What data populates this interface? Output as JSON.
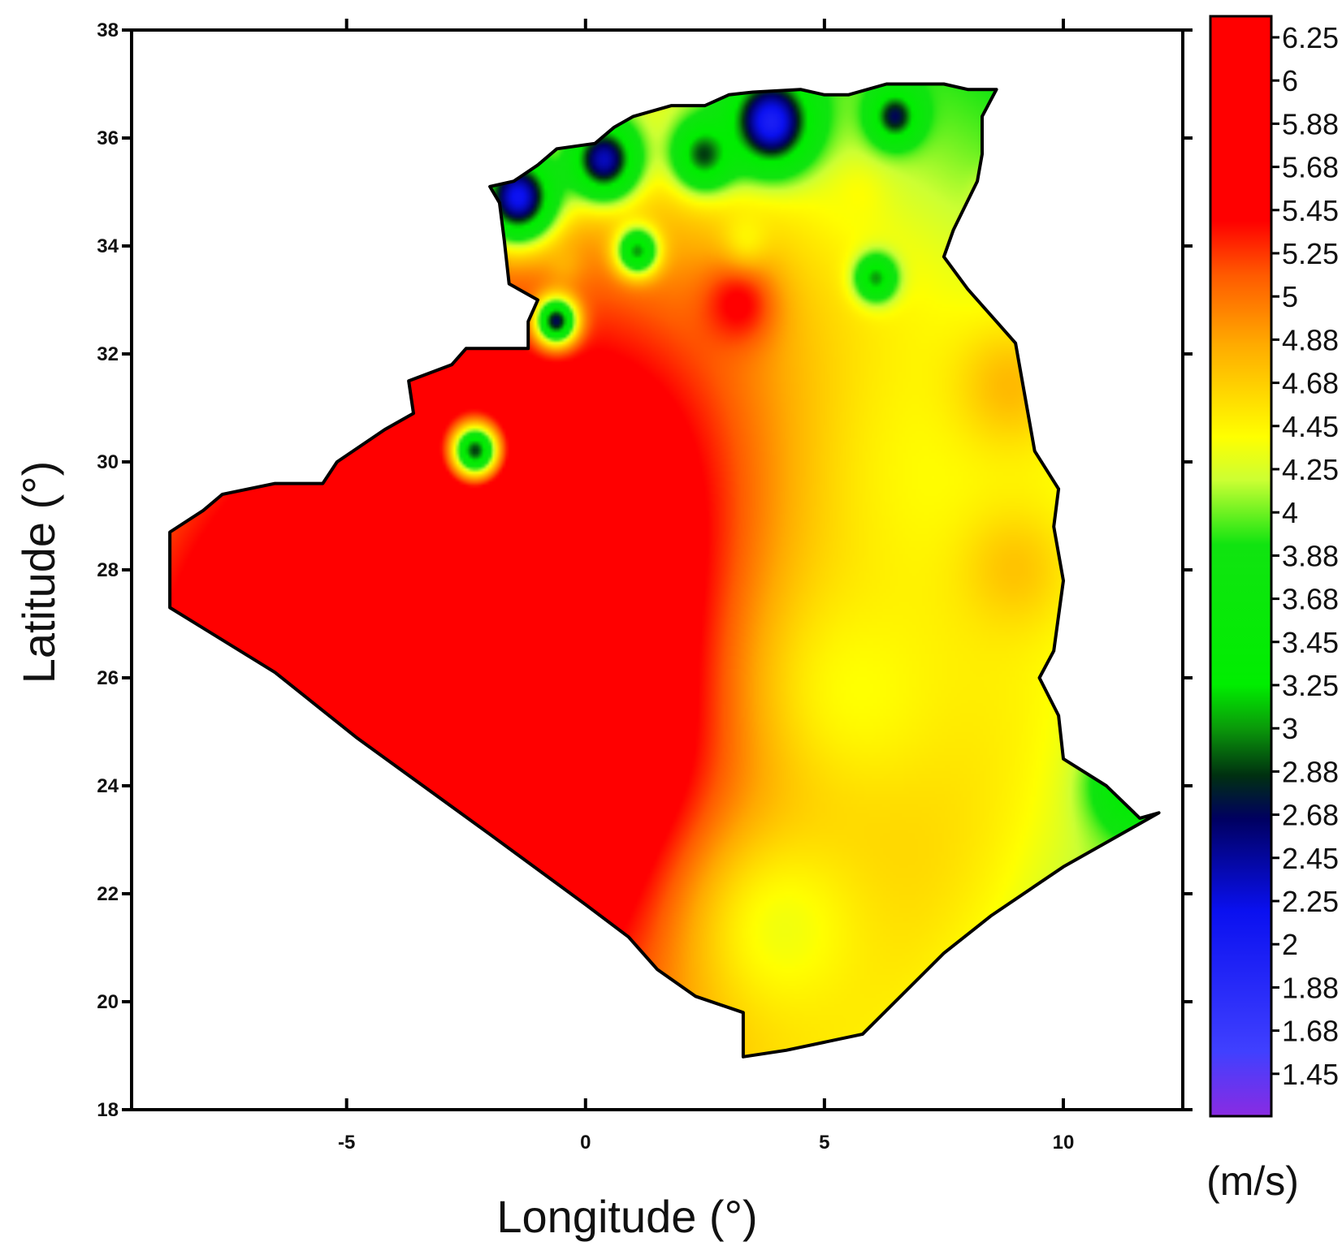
{
  "chart_data": {
    "type": "heatmap",
    "xlabel": "Longitude (°)",
    "ylabel": "Latitude (°)",
    "xlim": [
      -9.5,
      12.5
    ],
    "ylim": [
      18,
      38
    ],
    "x_ticks": [
      "-5",
      "0",
      "5",
      "10"
    ],
    "x_tick_values": [
      -5,
      0,
      5,
      10
    ],
    "y_ticks": [
      "18",
      "20",
      "22",
      "24",
      "26",
      "28",
      "30",
      "32",
      "34",
      "36",
      "38"
    ],
    "y_tick_values": [
      18,
      20,
      22,
      24,
      26,
      28,
      30,
      32,
      34,
      36,
      38
    ],
    "colorbar": {
      "unit": "(m/s)",
      "min": 1.3,
      "max": 6.4,
      "labels": [
        "6.25",
        "6",
        "5.88",
        "5.68",
        "5.45",
        "5.25",
        "5",
        "4.88",
        "4.68",
        "4.45",
        "4.25",
        "4",
        "3.88",
        "3.68",
        "3.45",
        "3.25",
        "3",
        "2.88",
        "2.68",
        "2.45",
        "2.25",
        "2",
        "1.88",
        "1.68",
        "1.45"
      ],
      "stops": [
        {
          "value": 1.3,
          "color": "#8a2be2"
        },
        {
          "value": 1.6,
          "color": "#4040ff"
        },
        {
          "value": 2.25,
          "color": "#0a10f0"
        },
        {
          "value": 2.68,
          "color": "#000060"
        },
        {
          "value": 2.88,
          "color": "#003010"
        },
        {
          "value": 3.1,
          "color": "#0a9a0a"
        },
        {
          "value": 3.3,
          "color": "#00ee00"
        },
        {
          "value": 3.95,
          "color": "#10e410"
        },
        {
          "value": 4.25,
          "color": "#ccff33"
        },
        {
          "value": 4.45,
          "color": "#ffff00"
        },
        {
          "value": 4.88,
          "color": "#ffaa00"
        },
        {
          "value": 5.2,
          "color": "#ff5a00"
        },
        {
          "value": 5.45,
          "color": "#ff0000"
        },
        {
          "value": 6.4,
          "color": "#ff0000"
        }
      ]
    },
    "field_base_value": 3.7,
    "wind_speed_anomalies": [
      {
        "lon": -0.2,
        "lat": 26.3,
        "value": 6.4,
        "r": 6.2
      },
      {
        "lon": -5.2,
        "lat": 25.5,
        "value": 5.9,
        "r": 4.0
      },
      {
        "lon": 7.8,
        "lat": 29.8,
        "value": 4.45,
        "r": 3.0
      },
      {
        "lon": 5.8,
        "lat": 25.8,
        "value": 4.45,
        "r": 2.3
      },
      {
        "lon": 4.2,
        "lat": 21.3,
        "value": 4.4,
        "r": 1.8
      },
      {
        "lon": 9.0,
        "lat": 28.0,
        "value": 4.75,
        "r": 0.8
      },
      {
        "lon": 8.9,
        "lat": 31.4,
        "value": 4.8,
        "r": 0.8
      },
      {
        "lon": 3.2,
        "lat": 32.9,
        "value": 5.5,
        "r": 0.55
      },
      {
        "lon": 3.4,
        "lat": 34.2,
        "value": 4.5,
        "r": 0.35
      },
      {
        "lon": 5.7,
        "lat": 34.9,
        "value": 4.45,
        "r": 0.4
      },
      {
        "lon": -0.4,
        "lat": 33.7,
        "value": 4.9,
        "r": 0.3
      },
      {
        "lon": 8.6,
        "lat": 34.9,
        "value": 4.4,
        "r": 0.3
      },
      {
        "lon": 3.9,
        "lat": 36.3,
        "value": 2.05,
        "r": 0.6
      },
      {
        "lon": 0.4,
        "lat": 35.6,
        "value": 2.4,
        "r": 0.5
      },
      {
        "lon": -1.4,
        "lat": 34.9,
        "value": 2.2,
        "r": 0.55
      },
      {
        "lon": 2.5,
        "lat": 35.7,
        "value": 2.9,
        "r": 0.45
      },
      {
        "lon": 6.5,
        "lat": 36.4,
        "value": 2.7,
        "r": 0.35
      },
      {
        "lon": -0.6,
        "lat": 32.6,
        "value": 2.7,
        "r": 0.3
      },
      {
        "lon": -2.3,
        "lat": 30.2,
        "value": 2.9,
        "r": 0.35
      },
      {
        "lon": 1.1,
        "lat": 33.9,
        "value": 3.1,
        "r": 0.3
      },
      {
        "lon": 6.1,
        "lat": 33.4,
        "value": 3.1,
        "r": 0.3
      },
      {
        "lon": 11.5,
        "lat": 24.0,
        "value": 3.3,
        "r": 0.6
      }
    ],
    "country_outline": [
      [
        -8.7,
        28.7
      ],
      [
        -8.0,
        29.1
      ],
      [
        -7.6,
        29.4
      ],
      [
        -6.5,
        29.6
      ],
      [
        -5.5,
        29.6
      ],
      [
        -5.2,
        30.0
      ],
      [
        -4.2,
        30.6
      ],
      [
        -3.6,
        30.9
      ],
      [
        -3.7,
        31.5
      ],
      [
        -2.8,
        31.8
      ],
      [
        -2.5,
        32.1
      ],
      [
        -1.2,
        32.1
      ],
      [
        -1.2,
        32.6
      ],
      [
        -1.0,
        33.0
      ],
      [
        -1.6,
        33.3
      ],
      [
        -1.7,
        34.1
      ],
      [
        -1.8,
        34.8
      ],
      [
        -2.0,
        35.1
      ],
      [
        -1.5,
        35.2
      ],
      [
        -1.0,
        35.5
      ],
      [
        -0.6,
        35.8
      ],
      [
        0.2,
        35.9
      ],
      [
        0.6,
        36.2
      ],
      [
        1.0,
        36.4
      ],
      [
        1.8,
        36.6
      ],
      [
        2.5,
        36.6
      ],
      [
        3.0,
        36.8
      ],
      [
        3.5,
        36.85
      ],
      [
        4.5,
        36.9
      ],
      [
        5.0,
        36.8
      ],
      [
        5.5,
        36.8
      ],
      [
        6.3,
        37.0
      ],
      [
        6.9,
        37.0
      ],
      [
        7.5,
        37.0
      ],
      [
        8.0,
        36.9
      ],
      [
        8.6,
        36.9
      ],
      [
        8.3,
        36.4
      ],
      [
        8.3,
        35.7
      ],
      [
        8.2,
        35.2
      ],
      [
        7.7,
        34.3
      ],
      [
        7.5,
        33.8
      ],
      [
        8.0,
        33.2
      ],
      [
        8.6,
        32.6
      ],
      [
        9.0,
        32.2
      ],
      [
        9.4,
        30.2
      ],
      [
        9.9,
        29.5
      ],
      [
        9.8,
        28.8
      ],
      [
        10.0,
        27.8
      ],
      [
        9.8,
        26.5
      ],
      [
        9.5,
        26.0
      ],
      [
        9.9,
        25.3
      ],
      [
        10.0,
        24.5
      ],
      [
        10.9,
        24.0
      ],
      [
        11.6,
        23.4
      ],
      [
        12.0,
        23.5
      ],
      [
        10.0,
        22.5
      ],
      [
        8.5,
        21.6
      ],
      [
        7.5,
        20.9
      ],
      [
        5.8,
        19.4
      ],
      [
        4.2,
        19.1
      ],
      [
        3.3,
        18.98
      ],
      [
        3.3,
        19.8
      ],
      [
        2.3,
        20.1
      ],
      [
        1.5,
        20.6
      ],
      [
        1.1,
        21.0
      ],
      [
        0.9,
        21.2
      ],
      [
        0.0,
        21.8
      ],
      [
        -2.0,
        23.1
      ],
      [
        -4.8,
        24.9
      ],
      [
        -6.5,
        26.1
      ],
      [
        -8.7,
        27.3
      ]
    ]
  }
}
